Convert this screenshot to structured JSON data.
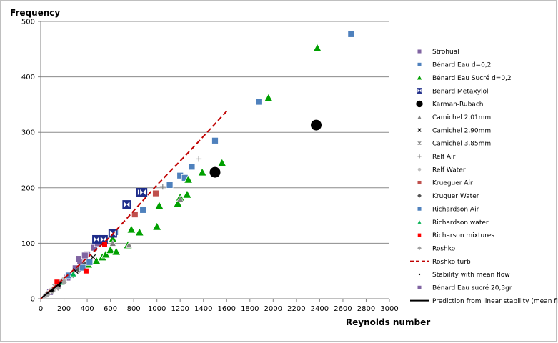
{
  "chart_data": {
    "type": "scatter",
    "title": "",
    "xlabel": "Reynolds number",
    "ylabel": "Frequency",
    "xlim": [
      0,
      3000
    ],
    "ylim": [
      0,
      500
    ],
    "x_ticks": [
      0,
      200,
      400,
      600,
      800,
      1000,
      1200,
      1400,
      1600,
      1800,
      2000,
      2200,
      2400,
      2600,
      2800,
      3000
    ],
    "y_ticks": [
      0,
      100,
      200,
      300,
      400,
      500
    ],
    "grid": "horizontal",
    "legend_position": "right",
    "series": [
      {
        "name": "Strohual",
        "marker": "square",
        "color": "#8064a2",
        "points": [
          [
            80,
            12
          ],
          [
            150,
            25
          ],
          [
            230,
            38
          ],
          [
            300,
            55
          ],
          [
            340,
            68
          ],
          [
            400,
            80
          ],
          [
            460,
            92
          ],
          [
            490,
            100
          ],
          [
            520,
            108
          ]
        ]
      },
      {
        "name": "Bénard Eau d=0,2",
        "marker": "square",
        "color": "#4f81bd",
        "points": [
          [
            640,
            120
          ],
          [
            880,
            160
          ],
          [
            1110,
            205
          ],
          [
            1200,
            222
          ],
          [
            1240,
            218
          ],
          [
            1300,
            238
          ],
          [
            1500,
            285
          ],
          [
            1880,
            355
          ],
          [
            2670,
            477
          ]
        ]
      },
      {
        "name": "Bénard Eau Sucré d=0,2",
        "marker": "triangle",
        "color": "#00a000",
        "points": [
          [
            410,
            62
          ],
          [
            480,
            68
          ],
          [
            530,
            75
          ],
          [
            560,
            80
          ],
          [
            600,
            88
          ],
          [
            620,
            108
          ],
          [
            650,
            85
          ],
          [
            750,
            97
          ],
          [
            780,
            125
          ],
          [
            850,
            120
          ],
          [
            1000,
            130
          ],
          [
            1020,
            168
          ],
          [
            1180,
            172
          ],
          [
            1200,
            183
          ],
          [
            1260,
            188
          ],
          [
            1270,
            215
          ],
          [
            1390,
            228
          ],
          [
            1560,
            245
          ],
          [
            1960,
            362
          ],
          [
            2380,
            452
          ]
        ]
      },
      {
        "name": "Benard Metaxylol",
        "marker": "bowtie",
        "color": "#1f2d8a",
        "points": [
          [
            480,
            107
          ],
          [
            540,
            107
          ],
          [
            620,
            118
          ],
          [
            740,
            170
          ],
          [
            860,
            192
          ],
          [
            880,
            192
          ]
        ]
      },
      {
        "name": "Karman-Rubach",
        "marker": "circle-large",
        "color": "#000000",
        "points": [
          [
            1500,
            228
          ],
          [
            2370,
            313
          ]
        ]
      },
      {
        "name": "Camichel 2,01mm",
        "marker": "triangle-small",
        "color": "#808080",
        "points": [
          [
            620,
            100
          ],
          [
            760,
            97
          ],
          [
            1200,
            180
          ]
        ]
      },
      {
        "name": "Camichel 2,90mm",
        "marker": "x",
        "color": "#000000",
        "points": [
          [
            300,
            50
          ],
          [
            450,
            75
          ]
        ]
      },
      {
        "name": "Camichel 3,85mm",
        "marker": "star",
        "color": "#808080",
        "points": [
          [
            120,
            22
          ],
          [
            260,
            42
          ]
        ]
      },
      {
        "name": "Relf Air",
        "marker": "plus",
        "color": "#808080",
        "points": [
          [
            1050,
            202
          ],
          [
            1360,
            252
          ]
        ]
      },
      {
        "name": "Relf Water",
        "marker": "circle",
        "color": "#c0c0c0",
        "points": [
          [
            40,
            6
          ],
          [
            60,
            10
          ],
          [
            90,
            15
          ],
          [
            110,
            18
          ],
          [
            140,
            24
          ],
          [
            170,
            30
          ],
          [
            200,
            35
          ],
          [
            240,
            40
          ]
        ]
      },
      {
        "name": "Krueguer Air",
        "marker": "square",
        "color": "#c0504d",
        "points": [
          [
            810,
            152
          ],
          [
            990,
            190
          ]
        ]
      },
      {
        "name": "Kruguer Water",
        "marker": "diamond",
        "color": "#555555",
        "points": [
          [
            330,
            52
          ],
          [
            380,
            62
          ]
        ]
      },
      {
        "name": "Richardson Air",
        "marker": "square",
        "color": "#4f81bd",
        "points": [
          [
            240,
            42
          ],
          [
            360,
            56
          ],
          [
            420,
            66
          ]
        ]
      },
      {
        "name": "Richardson water",
        "marker": "triangle-small",
        "color": "#00b050",
        "points": [
          [
            180,
            30
          ],
          [
            280,
            45
          ]
        ]
      },
      {
        "name": "Richarson mixtures",
        "marker": "square-small",
        "color": "#ff0000",
        "points": [
          [
            140,
            30
          ],
          [
            390,
            50
          ],
          [
            550,
            98
          ]
        ]
      },
      {
        "name": "Roshko",
        "marker": "diamond",
        "color": "#a0a0a0",
        "points": [
          [
            60,
            8
          ],
          [
            100,
            14
          ],
          [
            150,
            20
          ],
          [
            200,
            30
          ]
        ]
      },
      {
        "name": "Roshko turb",
        "marker": "dash-line",
        "color": "#c00000",
        "points": [
          [
            0,
            0
          ],
          [
            300,
            55
          ],
          [
            600,
            112
          ],
          [
            1000,
            205
          ],
          [
            1300,
            270
          ],
          [
            1600,
            338
          ]
        ]
      },
      {
        "name": "Stability with mean flow",
        "marker": "dot",
        "color": "#000000",
        "points": [
          [
            100,
            15
          ],
          [
            160,
            24
          ]
        ]
      },
      {
        "name": "Bénard Eau sucré 20,3gr",
        "marker": "square",
        "color": "#8064a2",
        "points": [
          [
            330,
            72
          ],
          [
            380,
            78
          ]
        ]
      },
      {
        "name": "Prediction from linear stability (mean flow)",
        "marker": "solid-line",
        "color": "#000000",
        "points": [
          [
            10,
            2
          ],
          [
            180,
            30
          ]
        ]
      }
    ]
  }
}
